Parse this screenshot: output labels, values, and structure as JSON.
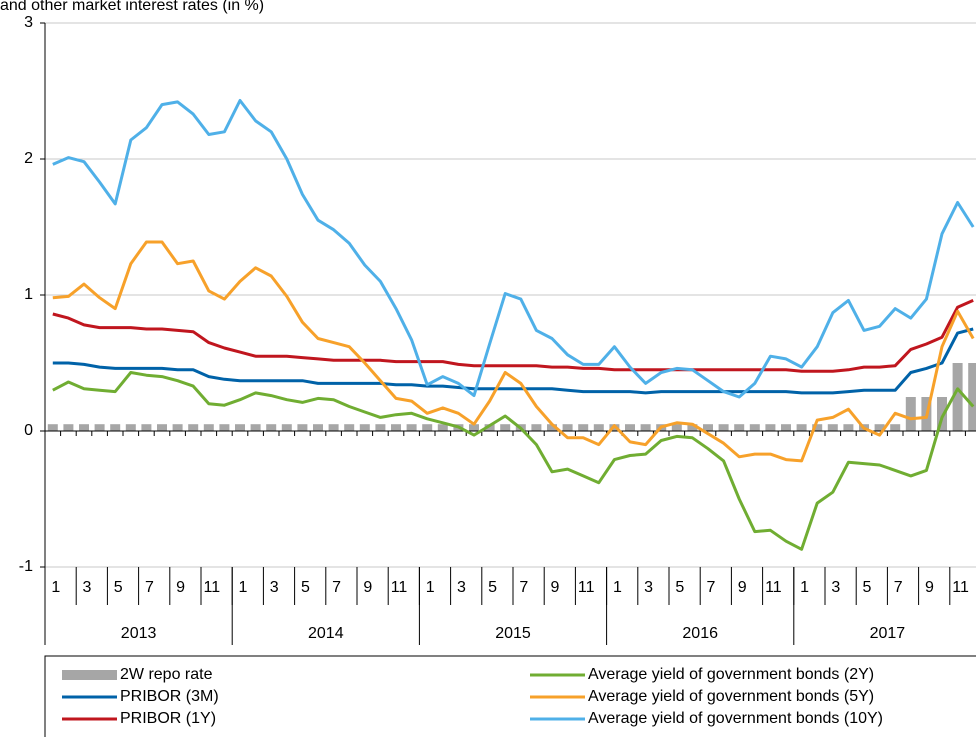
{
  "chart_data": {
    "type": "line",
    "title": "and other market interest rates (in %)",
    "categories": [
      "1",
      null,
      "3",
      null,
      "5",
      null,
      "7",
      null,
      "9",
      null,
      "11",
      null,
      "1",
      null,
      "3",
      null,
      "5",
      null,
      "7",
      null,
      "9",
      null,
      "11",
      null,
      "1",
      null,
      "3",
      null,
      "5",
      null,
      "7",
      null,
      "9",
      null,
      "11",
      null,
      "1",
      null,
      "3",
      null,
      "5",
      null,
      "7",
      null,
      "9",
      null,
      "11",
      null,
      "1",
      null,
      "3",
      null,
      "5",
      null,
      "7",
      null,
      "9",
      null,
      "11",
      null
    ],
    "years": [
      "2013",
      "2014",
      "2015",
      "2016",
      "2017"
    ],
    "ylim": [
      -1,
      3
    ],
    "yticks": [
      -1,
      0,
      1,
      2,
      3
    ],
    "grid": true,
    "series": [
      {
        "name": "2W repo rate",
        "type": "bar",
        "color": "#a6a6a6",
        "values": [
          0.05,
          0.05,
          0.05,
          0.05,
          0.05,
          0.05,
          0.05,
          0.05,
          0.05,
          0.05,
          0.05,
          0.05,
          0.05,
          0.05,
          0.05,
          0.05,
          0.05,
          0.05,
          0.05,
          0.05,
          0.05,
          0.05,
          0.05,
          0.05,
          0.05,
          0.05,
          0.05,
          0.05,
          0.05,
          0.05,
          0.05,
          0.05,
          0.05,
          0.05,
          0.05,
          0.05,
          0.05,
          0.05,
          0.05,
          0.05,
          0.05,
          0.05,
          0.05,
          0.05,
          0.05,
          0.05,
          0.05,
          0.05,
          0.05,
          0.05,
          0.05,
          0.05,
          0.05,
          0.05,
          0.05,
          0.25,
          0.25,
          0.25,
          0.5,
          0.5
        ]
      },
      {
        "name": "PRIBOR (3M)",
        "color": "#0062a8",
        "values": [
          0.5,
          0.5,
          0.49,
          0.47,
          0.46,
          0.46,
          0.46,
          0.46,
          0.45,
          0.45,
          0.4,
          0.38,
          0.37,
          0.37,
          0.37,
          0.37,
          0.37,
          0.35,
          0.35,
          0.35,
          0.35,
          0.35,
          0.34,
          0.34,
          0.33,
          0.33,
          0.32,
          0.31,
          0.31,
          0.31,
          0.31,
          0.31,
          0.31,
          0.3,
          0.29,
          0.29,
          0.29,
          0.29,
          0.28,
          0.29,
          0.29,
          0.29,
          0.29,
          0.29,
          0.29,
          0.29,
          0.29,
          0.29,
          0.28,
          0.28,
          0.28,
          0.29,
          0.3,
          0.3,
          0.3,
          0.43,
          0.46,
          0.5,
          0.72,
          0.75
        ]
      },
      {
        "name": "PRIBOR (1Y)",
        "color": "#c0161e",
        "values": [
          0.86,
          0.83,
          0.78,
          0.76,
          0.76,
          0.76,
          0.75,
          0.75,
          0.74,
          0.73,
          0.65,
          0.61,
          0.58,
          0.55,
          0.55,
          0.55,
          0.54,
          0.53,
          0.52,
          0.52,
          0.52,
          0.52,
          0.51,
          0.51,
          0.51,
          0.51,
          0.49,
          0.48,
          0.48,
          0.48,
          0.48,
          0.48,
          0.47,
          0.47,
          0.46,
          0.46,
          0.45,
          0.45,
          0.45,
          0.45,
          0.45,
          0.45,
          0.45,
          0.45,
          0.45,
          0.45,
          0.45,
          0.45,
          0.44,
          0.44,
          0.44,
          0.45,
          0.47,
          0.47,
          0.48,
          0.6,
          0.64,
          0.69,
          0.91,
          0.96
        ]
      },
      {
        "name": "Average yield of government bonds (2Y)",
        "color": "#70ad32",
        "values": [
          0.3,
          0.36,
          0.31,
          0.3,
          0.29,
          0.43,
          0.41,
          0.4,
          0.37,
          0.33,
          0.2,
          0.19,
          0.23,
          0.28,
          0.26,
          0.23,
          0.21,
          0.24,
          0.23,
          0.18,
          0.14,
          0.1,
          0.12,
          0.13,
          0.09,
          0.06,
          0.03,
          -0.03,
          0.04,
          0.11,
          0.02,
          -0.1,
          -0.3,
          -0.28,
          -0.33,
          -0.38,
          -0.21,
          -0.18,
          -0.17,
          -0.07,
          -0.04,
          -0.05,
          -0.13,
          -0.22,
          -0.5,
          -0.74,
          -0.73,
          -0.81,
          -0.87,
          -0.53,
          -0.45,
          -0.23,
          -0.24,
          -0.25,
          -0.29,
          -0.33,
          -0.29,
          0.1,
          0.31,
          0.18
        ]
      },
      {
        "name": "Average yield of government bonds (5Y)",
        "color": "#f7a12a",
        "values": [
          0.98,
          0.99,
          1.08,
          0.98,
          0.9,
          1.23,
          1.39,
          1.39,
          1.23,
          1.25,
          1.03,
          0.97,
          1.1,
          1.2,
          1.14,
          0.99,
          0.8,
          0.68,
          0.65,
          0.62,
          0.5,
          0.37,
          0.24,
          0.22,
          0.13,
          0.17,
          0.13,
          0.05,
          0.22,
          0.43,
          0.35,
          0.18,
          0.05,
          -0.05,
          -0.05,
          -0.1,
          0.04,
          -0.08,
          -0.1,
          0.03,
          0.06,
          0.05,
          -0.02,
          -0.09,
          -0.19,
          -0.17,
          -0.17,
          -0.21,
          -0.22,
          0.08,
          0.1,
          0.16,
          0.02,
          -0.03,
          0.13,
          0.09,
          0.1,
          0.62,
          0.88,
          0.68
        ]
      },
      {
        "name": "Average yield of government bonds (10Y)",
        "color": "#4fb0e8",
        "values": [
          1.96,
          2.01,
          1.98,
          1.83,
          1.67,
          2.14,
          2.23,
          2.4,
          2.42,
          2.33,
          2.18,
          2.2,
          2.43,
          2.28,
          2.2,
          2.0,
          1.74,
          1.55,
          1.48,
          1.38,
          1.22,
          1.1,
          0.9,
          0.67,
          0.34,
          0.4,
          0.35,
          0.26,
          0.64,
          1.01,
          0.97,
          0.74,
          0.68,
          0.56,
          0.49,
          0.49,
          0.62,
          0.47,
          0.35,
          0.43,
          0.46,
          0.45,
          0.37,
          0.29,
          0.25,
          0.35,
          0.55,
          0.53,
          0.47,
          0.62,
          0.87,
          0.96,
          0.74,
          0.77,
          0.9,
          0.83,
          0.97,
          1.45,
          1.68,
          1.5
        ]
      }
    ]
  }
}
